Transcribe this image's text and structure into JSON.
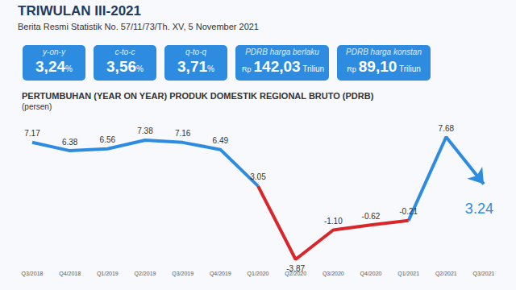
{
  "header": {
    "title": "TRIWULAN III-2021",
    "subtitle": "Berita Resmi Statistik No. 57/11/73/Th. XV, 5 November 2021"
  },
  "boxes": [
    {
      "label": "y-on-y",
      "value": "3,24",
      "unit": "%"
    },
    {
      "label": "c-to-c",
      "value": "3,56",
      "unit": "%"
    },
    {
      "label": "q-to-q",
      "value": "3,71",
      "unit": "%"
    },
    {
      "label": "PDRB harga berlaku",
      "prefix": "Rp",
      "value": "142,03",
      "unit": "Triliun"
    },
    {
      "label": "PDRB harga konstan",
      "prefix": "Rp",
      "value": "89,10",
      "unit": "Triliun"
    }
  ],
  "chart_data": {
    "type": "line",
    "title": "PERTUMBUHAN (YEAR ON YEAR) PRODUK DOMESTIK REGIONAL BRUTO (PDRB)",
    "subtitle": "(persen)",
    "categories": [
      "Q3/2018",
      "Q4/2018",
      "Q1/2019",
      "Q2/2019",
      "Q3/2019",
      "Q4/2019",
      "Q1/2020",
      "Q2/2020",
      "Q3/2020",
      "Q4/2020",
      "Q1/2021",
      "Q2/2021",
      "Q3/2021"
    ],
    "series": [
      {
        "color": "#2d8ce0",
        "values": [
          7.17,
          6.38,
          6.56,
          7.38,
          7.16,
          6.49,
          3.05,
          null,
          null,
          null,
          null,
          null,
          null
        ],
        "value_labels": [
          "7.17",
          "6.38",
          "6.56",
          "7.38",
          "7.16",
          "6.49",
          "3.05",
          null,
          null,
          null,
          null,
          null,
          null
        ]
      },
      {
        "color": "#d9262b",
        "values": [
          null,
          null,
          null,
          null,
          null,
          null,
          3.05,
          -3.87,
          -1.1,
          -0.62,
          -0.21,
          null,
          null
        ],
        "value_labels": [
          null,
          null,
          null,
          null,
          null,
          null,
          "3.05",
          "-3.87",
          "-1.10",
          "-0.62",
          "-0.21",
          null,
          null
        ]
      },
      {
        "color": "#2d8ce0",
        "marker": "arrow",
        "values": [
          null,
          null,
          null,
          null,
          null,
          null,
          null,
          null,
          null,
          null,
          -0.21,
          7.68,
          3.24
        ],
        "value_labels": [
          null,
          null,
          null,
          null,
          null,
          null,
          null,
          null,
          null,
          null,
          "-0.21",
          "7.68",
          "3.24"
        ]
      }
    ],
    "data_labels": true,
    "tick_labels": "x",
    "grid": false
  }
}
